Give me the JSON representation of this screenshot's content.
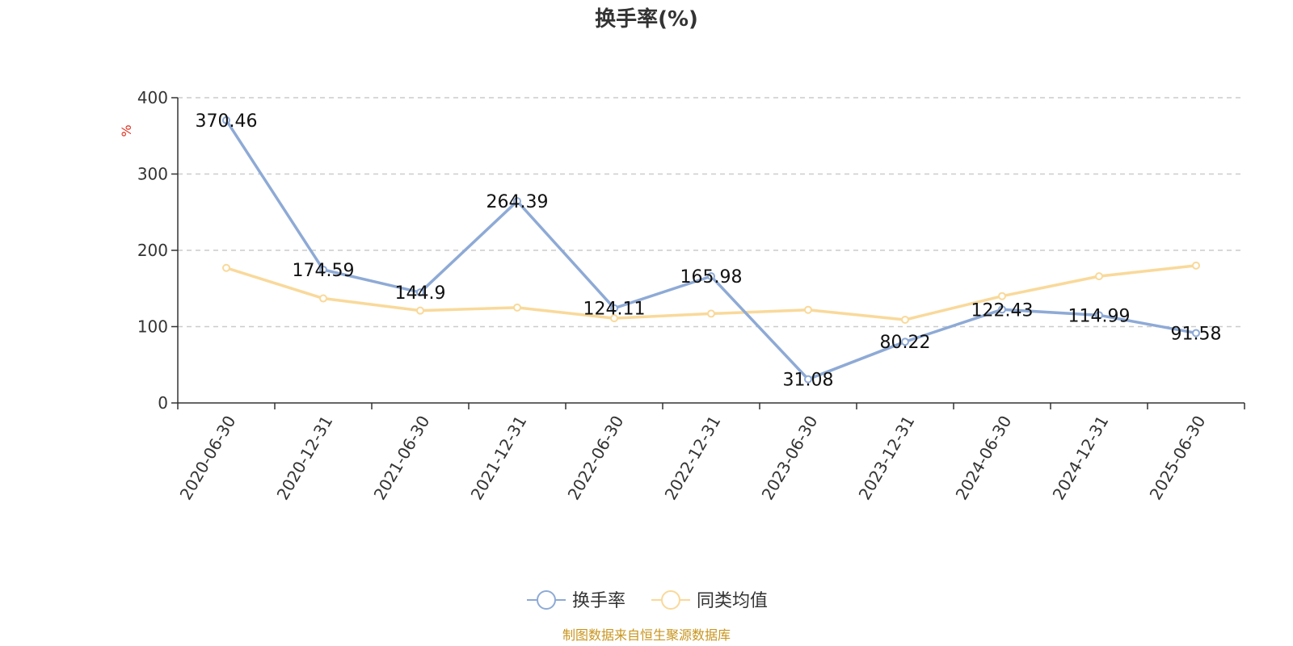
{
  "chart_data": {
    "type": "line",
    "title": "换手率(%)",
    "ylabel": "%",
    "ylim": [
      0,
      400
    ],
    "yticks": [
      0,
      100,
      200,
      300,
      400
    ],
    "grid": true,
    "legend_position": "bottom-center",
    "categories": [
      "2020-06-30",
      "2020-12-31",
      "2021-06-30",
      "2021-12-31",
      "2022-06-30",
      "2022-12-31",
      "2023-06-30",
      "2023-12-31",
      "2024-06-30",
      "2024-12-31",
      "2025-06-30"
    ],
    "series": [
      {
        "name": "换手率",
        "color": "#8eaad6",
        "values": [
          370.46,
          174.59,
          144.9,
          264.39,
          124.11,
          165.98,
          31.08,
          80.22,
          122.43,
          114.99,
          91.58
        ],
        "labels": [
          "370.46",
          "174.59",
          "144.9",
          "264.39",
          "124.11",
          "165.98",
          "31.08",
          "80.22",
          "122.43",
          "114.99",
          "91.58"
        ]
      },
      {
        "name": "同类均值",
        "color": "#f9d99a",
        "values": [
          177,
          137,
          121,
          125,
          111,
          117,
          122,
          109,
          140,
          166,
          180
        ]
      }
    ],
    "source": "制图数据来自恒生聚源数据库"
  }
}
